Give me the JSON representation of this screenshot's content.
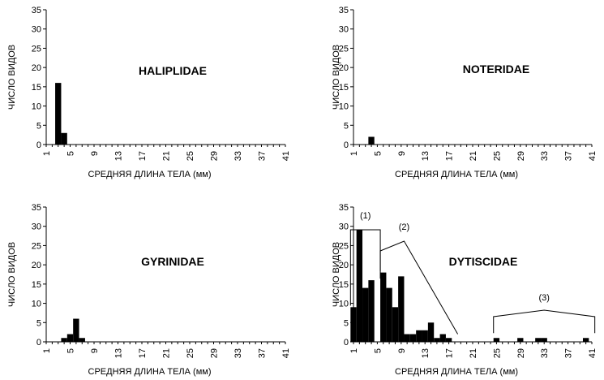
{
  "chart_data": [
    {
      "type": "bar",
      "title": "HALIPLIDAE",
      "xlabel": "СРЕДНЯЯ ДЛИНА ТЕЛА (мм)",
      "ylabel": "ЧИСЛО ВИДОВ",
      "xlim": [
        1,
        41
      ],
      "ylim": [
        0,
        35
      ],
      "x_ticks": [
        1,
        5,
        9,
        13,
        17,
        21,
        25,
        29,
        33,
        37,
        41
      ],
      "y_ticks": [
        0,
        5,
        10,
        15,
        20,
        25,
        30,
        35
      ],
      "bars": [
        {
          "x": 3,
          "value": 16
        },
        {
          "x": 4,
          "value": 3
        }
      ]
    },
    {
      "type": "bar",
      "title": "NOTERIDAE",
      "xlabel": "СРЕДНЯЯ ДЛИНА ТЕЛА (мм)",
      "ylabel": "ЧИСЛО ВИДОВ",
      "xlim": [
        1,
        41
      ],
      "ylim": [
        0,
        35
      ],
      "x_ticks": [
        1,
        5,
        9,
        13,
        17,
        21,
        25,
        29,
        33,
        37,
        41
      ],
      "y_ticks": [
        0,
        5,
        10,
        15,
        20,
        25,
        30,
        35
      ],
      "bars": [
        {
          "x": 4,
          "value": 2
        }
      ]
    },
    {
      "type": "bar",
      "title": "GYRINIDAE",
      "xlabel": "СРЕДНЯЯ ДЛИНА ТЕЛА (мм)",
      "ylabel": "ЧИСЛО ВИДОВ",
      "xlim": [
        1,
        41
      ],
      "ylim": [
        0,
        35
      ],
      "x_ticks": [
        1,
        5,
        9,
        13,
        17,
        21,
        25,
        29,
        33,
        37,
        41
      ],
      "y_ticks": [
        0,
        5,
        10,
        15,
        20,
        25,
        30,
        35
      ],
      "bars": [
        {
          "x": 4,
          "value": 1
        },
        {
          "x": 5,
          "value": 2
        },
        {
          "x": 6,
          "value": 6
        },
        {
          "x": 7,
          "value": 1
        }
      ]
    },
    {
      "type": "bar",
      "title": "DYTISCIDAE",
      "xlabel": "СРЕДНЯЯ ДЛИНА ТЕЛА (мм)",
      "ylabel": "ЧИСЛО ВИДОВ",
      "xlim": [
        1,
        41
      ],
      "ylim": [
        0,
        35
      ],
      "x_ticks": [
        1,
        5,
        9,
        13,
        17,
        21,
        25,
        29,
        33,
        37,
        41
      ],
      "y_ticks": [
        0,
        5,
        10,
        15,
        20,
        25,
        30,
        35
      ],
      "bars": [
        {
          "x": 1,
          "value": 9
        },
        {
          "x": 2,
          "value": 29
        },
        {
          "x": 3,
          "value": 14
        },
        {
          "x": 4,
          "value": 16
        },
        {
          "x": 6,
          "value": 18
        },
        {
          "x": 7,
          "value": 14
        },
        {
          "x": 8,
          "value": 9
        },
        {
          "x": 9,
          "value": 17
        },
        {
          "x": 10,
          "value": 2
        },
        {
          "x": 11,
          "value": 2
        },
        {
          "x": 12,
          "value": 3
        },
        {
          "x": 13,
          "value": 3
        },
        {
          "x": 14,
          "value": 5
        },
        {
          "x": 15,
          "value": 1
        },
        {
          "x": 16,
          "value": 2
        },
        {
          "x": 17,
          "value": 1
        },
        {
          "x": 25,
          "value": 1
        },
        {
          "x": 29,
          "value": 1
        },
        {
          "x": 32,
          "value": 1
        },
        {
          "x": 33,
          "value": 1
        },
        {
          "x": 40,
          "value": 1
        }
      ],
      "annotations": [
        {
          "label": "(1)",
          "from": 1,
          "to": 5
        },
        {
          "label": "(2)",
          "from": 6,
          "to": 18
        },
        {
          "label": "(3)",
          "from": 25,
          "to": 41
        }
      ]
    }
  ]
}
